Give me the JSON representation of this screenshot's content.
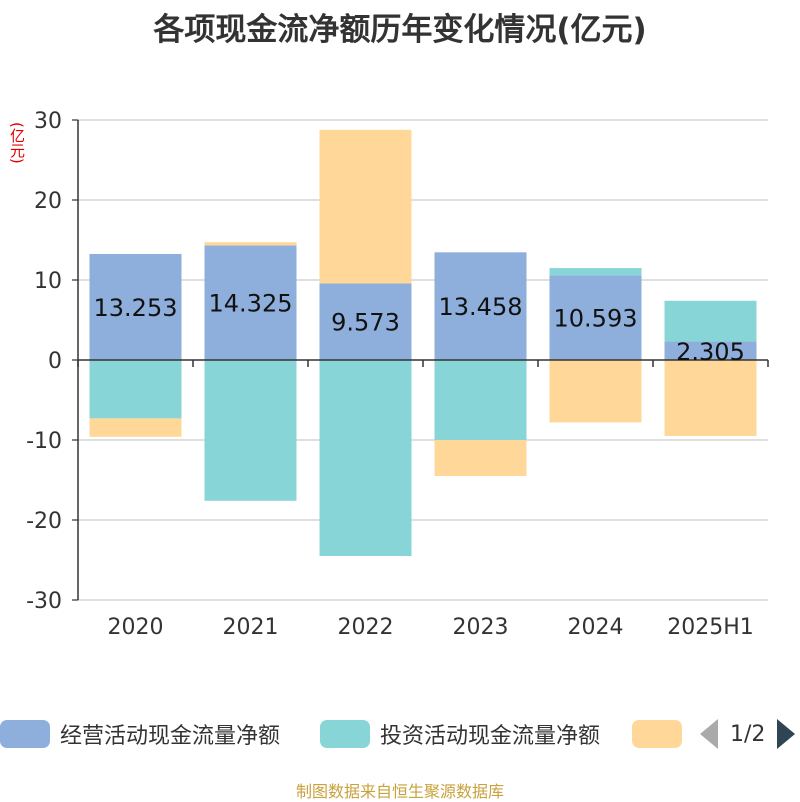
{
  "title": "各项现金流净额历年变化情况(亿元)",
  "unit_label": "(亿元)",
  "source": "制图数据来自恒生聚源数据库",
  "pager": {
    "text": "1/2"
  },
  "chart_data": {
    "type": "bar",
    "stacked": true,
    "categories": [
      "2020",
      "2021",
      "2022",
      "2023",
      "2024",
      "2025H1"
    ],
    "ylim": [
      -30,
      30
    ],
    "yticks": [
      30,
      20,
      10,
      0,
      -10,
      -20,
      -30
    ],
    "grid": true,
    "legend_position": "bottom",
    "series": [
      {
        "name": "经营活动现金流量净额",
        "color": "#8eaedb",
        "values": [
          13.253,
          14.325,
          9.573,
          13.458,
          10.593,
          2.305
        ],
        "labels": [
          "13.253",
          "14.325",
          "9.573",
          "13.458",
          "10.593",
          "2.305"
        ]
      },
      {
        "name": "投资活动现金流量净额",
        "color": "#88d5d8",
        "values": [
          -7.3,
          -17.6,
          -24.5,
          -10.0,
          0.9,
          5.1
        ]
      },
      {
        "name": "",
        "color": "#ffd899",
        "values": [
          -2.3,
          0.4,
          19.2,
          -4.5,
          -7.8,
          -9.5
        ]
      }
    ]
  }
}
